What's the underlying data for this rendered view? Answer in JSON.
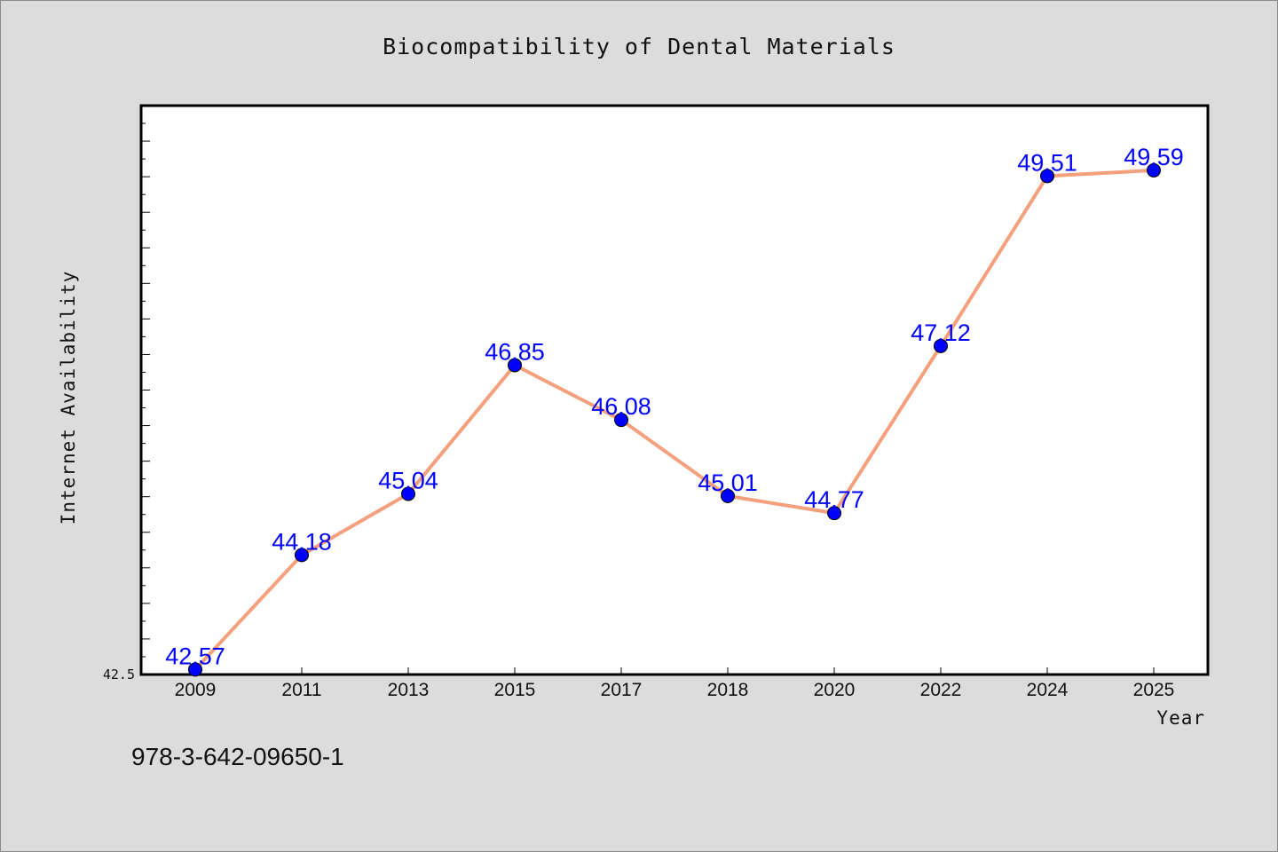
{
  "chart_data": {
    "type": "line",
    "title": "Biocompatibility of Dental Materials",
    "xlabel": "Year",
    "ylabel": "Internet Availability",
    "categories": [
      "2009",
      "2011",
      "2013",
      "2015",
      "2017",
      "2018",
      "2020",
      "2022",
      "2024",
      "2025"
    ],
    "series": [
      {
        "values": [
          42.57,
          44.18,
          45.04,
          46.85,
          46.08,
          45.01,
          44.77,
          47.12,
          49.51,
          49.59
        ]
      }
    ],
    "data_labels": [
      "42.57",
      "44.18",
      "45.04",
      "46.85",
      "46.08",
      "45.01",
      "44.77",
      "47.12",
      "49.51",
      "49.59"
    ],
    "y_tick_labels": [
      "42.5"
    ],
    "ylim": [
      42.5,
      50.5
    ],
    "grid": false,
    "legend": "none",
    "line_color": "#f4a07c",
    "marker_color": "#0000ff",
    "label_color": "#0000ff"
  },
  "footer": {
    "isbn": "978-3-642-09650-1"
  }
}
